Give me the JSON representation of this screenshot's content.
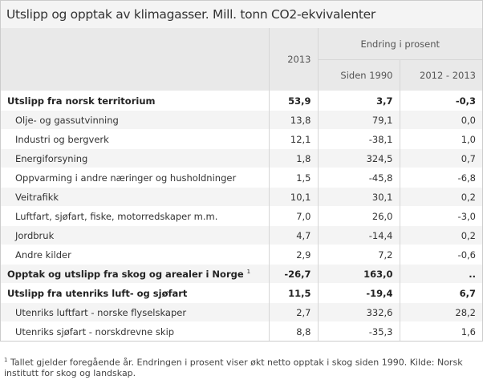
{
  "title": "Utslipp og opptak av klimagasser. Mill. tonn CO2-ekvivalenter",
  "header": {
    "year": "2013",
    "group": "Endring i prosent",
    "sub1": "Siden 1990",
    "sub2": "2012 - 2013"
  },
  "rows": [
    {
      "label": "Utslipp fra norsk territorium",
      "v2013": "53,9",
      "since1990": "3,7",
      "change": "-0,3",
      "bold": true
    },
    {
      "label": "Olje- og gassutvinning",
      "v2013": "13,8",
      "since1990": "79,1",
      "change": "0,0"
    },
    {
      "label": "Industri og bergverk",
      "v2013": "12,1",
      "since1990": "-38,1",
      "change": "1,0"
    },
    {
      "label": "Energiforsyning",
      "v2013": "1,8",
      "since1990": "324,5",
      "change": "0,7"
    },
    {
      "label": "Oppvarming i andre næringer og husholdninger",
      "v2013": "1,5",
      "since1990": "-45,8",
      "change": "-6,8"
    },
    {
      "label": "Veitrafikk",
      "v2013": "10,1",
      "since1990": "30,1",
      "change": "0,2"
    },
    {
      "label": "Luftfart, sjøfart, fiske, motorredskaper m.m.",
      "v2013": "7,0",
      "since1990": "26,0",
      "change": "-3,0"
    },
    {
      "label": "Jordbruk",
      "v2013": "4,7",
      "since1990": "-14,4",
      "change": "0,2"
    },
    {
      "label": "Andre kilder",
      "v2013": "2,9",
      "since1990": "7,2",
      "change": "-0,6"
    },
    {
      "label": "Opptak og utslipp fra skog og arealer i Norge",
      "sup": "1",
      "v2013": "-26,7",
      "since1990": "163,0",
      "change": "..",
      "bold": true
    },
    {
      "label": "Utslipp fra utenriks luft- og sjøfart",
      "v2013": "11,5",
      "since1990": "-19,4",
      "change": "6,7",
      "bold": true
    },
    {
      "label": "Utenriks luftfart - norske flyselskaper",
      "v2013": "2,7",
      "since1990": "332,6",
      "change": "28,2"
    },
    {
      "label": "Utenriks sjøfart - norskdrevne skip",
      "v2013": "8,8",
      "since1990": "-35,3",
      "change": "1,6"
    }
  ],
  "footnote": {
    "mark": "1",
    "text": "Tallet gjelder foregående år. Endringen i prosent viser økt netto opptak i skog siden 1990. Kilde: Norsk institutt for skog og landskap."
  }
}
